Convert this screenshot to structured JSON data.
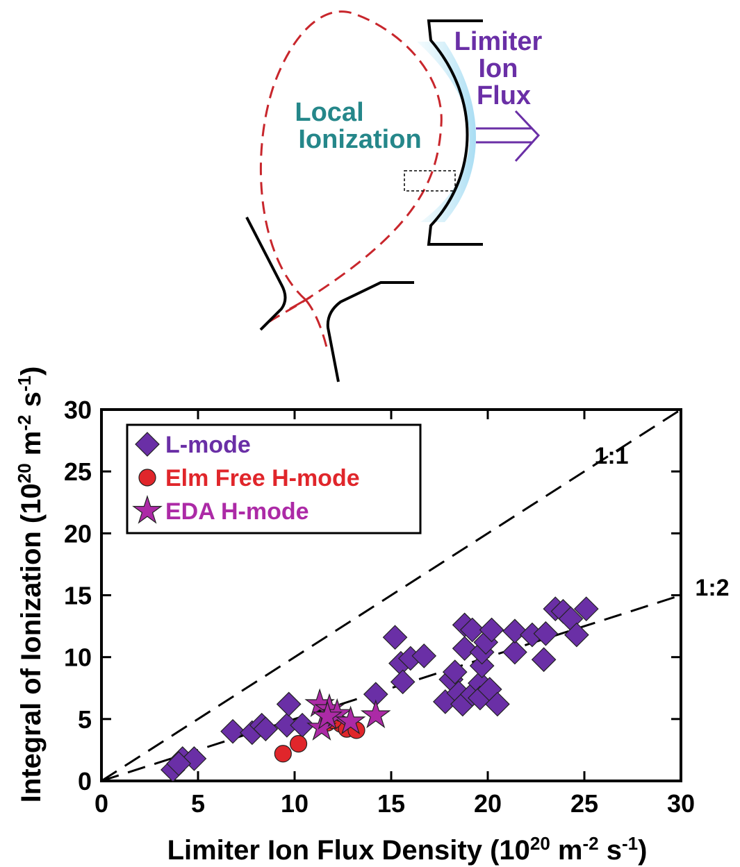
{
  "diagram": {
    "limiter_label": [
      "Limiter",
      "Ion",
      "Flux"
    ],
    "ionization_label": [
      "Local",
      "Ionization"
    ]
  },
  "chart_data": {
    "type": "scatter",
    "x_label": [
      "Limiter Ion Flux Density (10",
      "20",
      " m",
      "-2",
      " s",
      "-1",
      ")"
    ],
    "y_label": [
      "Integral of Ionization (10",
      "20",
      " m",
      "-2",
      " s",
      "-1",
      ")"
    ],
    "xlim": [
      0,
      30
    ],
    "ylim": [
      0,
      30
    ],
    "xticks": [
      0,
      5,
      10,
      15,
      20,
      25,
      30
    ],
    "yticks": [
      0,
      5,
      10,
      15,
      20,
      25,
      30
    ],
    "reference_lines": [
      {
        "label": "1:1",
        "slope": 1
      },
      {
        "label": "1:2",
        "slope": 0.5
      }
    ],
    "legend": "top-left",
    "series": [
      {
        "name": "L-mode",
        "color": "#6a2fa6",
        "marker": "diamond",
        "x": [
          3.7,
          4.2,
          4.8,
          4.0,
          6.8,
          7.8,
          8.3,
          8.5,
          9.6,
          9.7,
          10.4,
          14.2,
          15.2,
          15.5,
          15.6,
          16.0,
          16.7,
          17.8,
          18.1,
          18.5,
          18.3,
          18.7,
          18.8,
          18.8,
          19.2,
          19.2,
          19.6,
          19.7,
          19.7,
          19.9,
          20.2,
          19.6,
          20.1,
          20.5,
          21.4,
          21.4,
          22.3,
          22.9,
          23.0,
          23.5,
          23.9,
          24.3,
          24.6,
          25.1
        ],
        "values": [
          0.9,
          1.8,
          1.8,
          1.4,
          4.0,
          3.9,
          4.5,
          4.2,
          4.5,
          6.2,
          4.5,
          7.0,
          11.6,
          9.5,
          8.0,
          9.9,
          10.1,
          6.4,
          8.2,
          7.1,
          8.8,
          6.2,
          12.6,
          10.7,
          12.2,
          7.0,
          7.9,
          9.3,
          10.4,
          11.2,
          12.2,
          6.7,
          7.4,
          6.2,
          10.4,
          12.1,
          11.8,
          9.8,
          11.9,
          13.9,
          13.7,
          13.1,
          11.8,
          13.9
        ]
      },
      {
        "name": "Elm Free H-mode",
        "color": "#e0262b",
        "marker": "circle",
        "x": [
          9.4,
          10.2,
          11.7,
          12.4,
          12.7,
          13.2,
          12.0
        ],
        "values": [
          2.2,
          3.0,
          4.7,
          4.6,
          4.2,
          4.1,
          4.9
        ]
      },
      {
        "name": "EDA H-mode",
        "color": "#ac2aa6",
        "marker": "star",
        "x": [
          11.3,
          11.4,
          11.8,
          12.2,
          12.9,
          14.2,
          11.7
        ],
        "values": [
          6.2,
          4.3,
          5.8,
          5.4,
          4.8,
          5.3,
          5.2
        ]
      }
    ]
  }
}
